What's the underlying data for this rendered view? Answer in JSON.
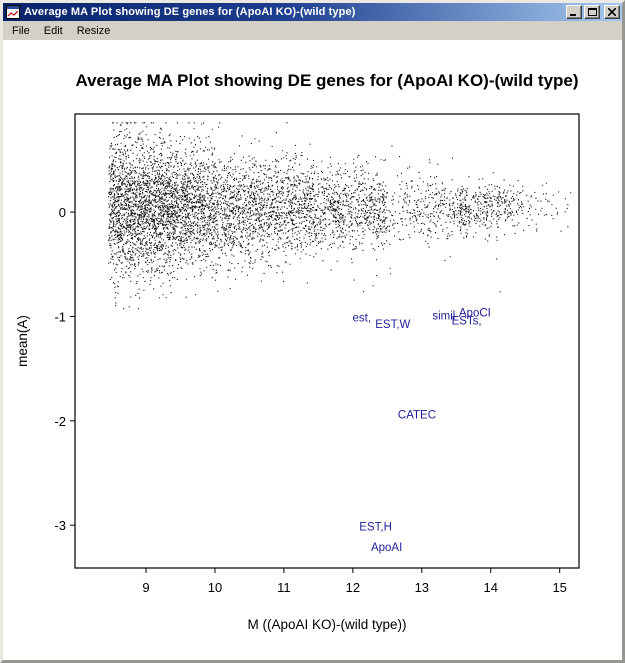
{
  "window": {
    "title": "Average MA Plot showing DE genes for (ApoAI KO)-(wild type)",
    "buttons": [
      "minimize",
      "maximize",
      "close"
    ]
  },
  "menu": {
    "items": [
      "File",
      "Edit",
      "Resize"
    ]
  },
  "chart_data": {
    "type": "scatter",
    "title": "Average MA Plot showing DE genes for (ApoAI KO)-(wild type)",
    "xlabel": "M ((ApoAI KO)-(wild type))",
    "ylabel": "mean(A)",
    "x_ticks": [
      9,
      10,
      11,
      12,
      13,
      14,
      15
    ],
    "y_ticks": [
      0,
      -1,
      -2,
      -3
    ],
    "xlim": [
      7.97,
      15.28
    ],
    "ylim": [
      -3.41,
      0.94
    ],
    "grid": false,
    "point_color": "#161616",
    "label_color": "#22229a",
    "labeled_genes": [
      {
        "text": "est,",
        "x": 12.13,
        "y": -1.01
      },
      {
        "text": "EST,W",
        "x": 12.58,
        "y": -1.07
      },
      {
        "text": "simil",
        "x": 13.32,
        "y": -0.99
      },
      {
        "text": "ApoCI",
        "x": 13.77,
        "y": -0.96
      },
      {
        "text": "ESTs,",
        "x": 13.65,
        "y": -1.04
      },
      {
        "text": "CATEC",
        "x": 12.93,
        "y": -1.94
      },
      {
        "text": "EST,H",
        "x": 12.33,
        "y": -3.01
      },
      {
        "text": "ApoAI",
        "x": 12.49,
        "y": -3.21
      }
    ],
    "point_cloud": {
      "description": "Several thousand unlabeled genes forming a band centered near 0, densest for x between 8.5 and 12, vertical spread about +/-0.8 on the left narrowing to +/-0.25 on the right",
      "seed": 1337,
      "count": 6000,
      "x_range": [
        8.36,
        15.22
      ],
      "y_center": 0.04,
      "y_spread_left": 0.34,
      "y_spread_right": 0.1,
      "outlier_fraction": 0.015
    }
  }
}
